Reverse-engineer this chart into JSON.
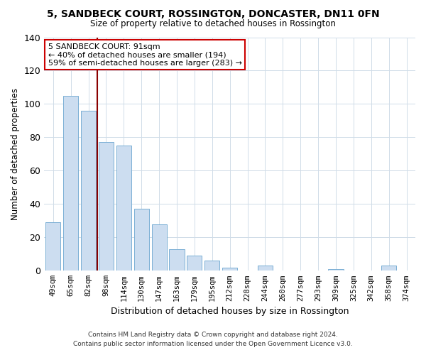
{
  "title": "5, SANDBECK COURT, ROSSINGTON, DONCASTER, DN11 0FN",
  "subtitle": "Size of property relative to detached houses in Rossington",
  "xlabel": "Distribution of detached houses by size in Rossington",
  "ylabel": "Number of detached properties",
  "categories": [
    "49sqm",
    "65sqm",
    "82sqm",
    "98sqm",
    "114sqm",
    "130sqm",
    "147sqm",
    "163sqm",
    "179sqm",
    "195sqm",
    "212sqm",
    "228sqm",
    "244sqm",
    "260sqm",
    "277sqm",
    "293sqm",
    "309sqm",
    "325sqm",
    "342sqm",
    "358sqm",
    "374sqm"
  ],
  "values": [
    29,
    105,
    96,
    77,
    75,
    37,
    28,
    13,
    9,
    6,
    2,
    0,
    3,
    0,
    0,
    0,
    1,
    0,
    0,
    3,
    0
  ],
  "bar_color": "#ccddf0",
  "bar_edge_color": "#7aafd4",
  "vline_x_index": 2,
  "vline_color": "#8b0000",
  "annotation_title": "5 SANDBECK COURT: 91sqm",
  "annotation_line1": "← 40% of detached houses are smaller (194)",
  "annotation_line2": "59% of semi-detached houses are larger (283) →",
  "annotation_box_color": "#ffffff",
  "annotation_box_edge": "#cc0000",
  "ylim": [
    0,
    140
  ],
  "yticks": [
    0,
    20,
    40,
    60,
    80,
    100,
    120,
    140
  ],
  "footnote1": "Contains HM Land Registry data © Crown copyright and database right 2024.",
  "footnote2": "Contains public sector information licensed under the Open Government Licence v3.0.",
  "background_color": "#ffffff",
  "grid_color": "#d0dce8"
}
